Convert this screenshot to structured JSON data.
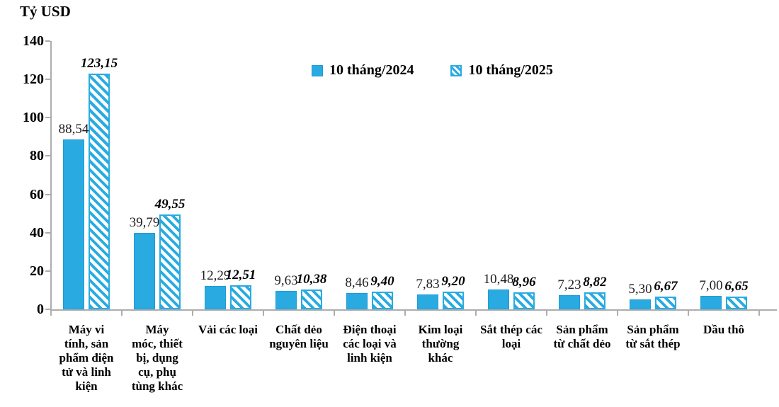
{
  "chart_data": {
    "type": "bar",
    "title": "Tỷ USD",
    "ylabel": "Tỷ USD",
    "ylim": [
      0,
      140
    ],
    "yticks": [
      0,
      20,
      40,
      60,
      80,
      100,
      120,
      140
    ],
    "grid": false,
    "legend_position": "top-center",
    "decimal_separator": ",",
    "categories": [
      "Máy vi\ntính, sản\nphẩm điện\ntử và linh\nkiện",
      "Máy\nmóc, thiết\nbị, dụng\ncụ, phụ\ntùng khác",
      "Vải các loại",
      "Chất dẻo\nnguyên liệu",
      "Điện thoại\ncác loại và\nlinh kiện",
      "Kim loại\nthường\nkhác",
      "Sắt thép các\nloại",
      "Sản phẩm\ntừ chất dẻo",
      "Sản phẩm\ntừ sắt thép",
      "Dầu thô"
    ],
    "series": [
      {
        "name": "10 tháng/2024",
        "pattern": "solid",
        "values": [
          88.54,
          39.79,
          12.29,
          9.63,
          8.46,
          7.83,
          10.48,
          7.23,
          5.3,
          7.0
        ],
        "labels": [
          "88,54",
          "39,79",
          "12,29",
          "9,63",
          "8,46",
          "7,83",
          "10,48",
          "7,23",
          "5,30",
          "7,00"
        ]
      },
      {
        "name": "10 tháng/2025",
        "pattern": "hatched",
        "values": [
          123.15,
          49.55,
          12.51,
          10.38,
          9.4,
          9.2,
          8.96,
          8.82,
          6.67,
          6.65
        ],
        "labels": [
          "123,15",
          "49,55",
          "12,51",
          "10,38",
          "9,40",
          "9,20",
          "8,96",
          "8,82",
          "6,67",
          "6,65"
        ]
      }
    ],
    "colors": {
      "bar_fill": "#29ABE2",
      "bar_border": "#1E9CD7",
      "hatch_stripe": "#29ABE2",
      "axis": "#ADADAD",
      "text": "#000000"
    }
  }
}
